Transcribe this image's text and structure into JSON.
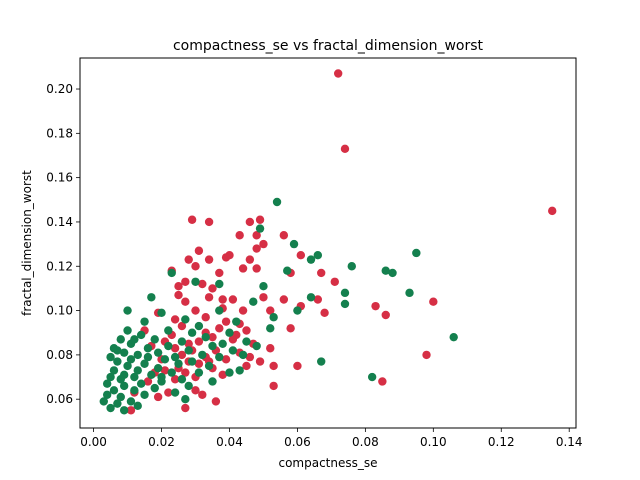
{
  "chart_data": {
    "type": "scatter",
    "title": "compactness_se vs fractal_dimension_worst",
    "xlabel": "compactness_se",
    "ylabel": "fractal_dimension_worst",
    "xlim": [
      -0.004,
      0.142
    ],
    "ylim": [
      0.047,
      0.214
    ],
    "xticks": [
      0.0,
      0.02,
      0.04,
      0.06,
      0.08,
      0.1,
      0.12,
      0.14
    ],
    "xtick_labels": [
      "0.00",
      "0.02",
      "0.04",
      "0.06",
      "0.08",
      "0.10",
      "0.12",
      "0.14"
    ],
    "yticks": [
      0.06,
      0.08,
      0.1,
      0.12,
      0.14,
      0.16,
      0.18,
      0.2
    ],
    "ytick_labels": [
      "0.06",
      "0.08",
      "0.10",
      "0.12",
      "0.14",
      "0.16",
      "0.18",
      "0.20"
    ],
    "grid": false,
    "series": [
      {
        "color": "#d62f45",
        "points": [
          [
            0.072,
            0.207
          ],
          [
            0.074,
            0.173
          ],
          [
            0.135,
            0.145
          ],
          [
            0.029,
            0.141
          ],
          [
            0.034,
            0.14
          ],
          [
            0.046,
            0.14
          ],
          [
            0.049,
            0.141
          ],
          [
            0.048,
            0.134
          ],
          [
            0.056,
            0.134
          ],
          [
            0.043,
            0.134
          ],
          [
            0.05,
            0.13
          ],
          [
            0.048,
            0.128
          ],
          [
            0.031,
            0.127
          ],
          [
            0.04,
            0.125
          ],
          [
            0.061,
            0.125
          ],
          [
            0.039,
            0.124
          ],
          [
            0.028,
            0.123
          ],
          [
            0.046,
            0.123
          ],
          [
            0.034,
            0.123
          ],
          [
            0.03,
            0.12
          ],
          [
            0.044,
            0.119
          ],
          [
            0.048,
            0.119
          ],
          [
            0.023,
            0.118
          ],
          [
            0.037,
            0.117
          ],
          [
            0.058,
            0.117
          ],
          [
            0.067,
            0.117
          ],
          [
            0.071,
            0.113
          ],
          [
            0.032,
            0.112
          ],
          [
            0.025,
            0.111
          ],
          [
            0.035,
            0.11
          ],
          [
            0.05,
            0.106
          ],
          [
            0.041,
            0.105
          ],
          [
            0.038,
            0.105
          ],
          [
            0.027,
            0.104
          ],
          [
            0.056,
            0.105
          ],
          [
            0.066,
            0.105
          ],
          [
            0.1,
            0.104
          ],
          [
            0.083,
            0.102
          ],
          [
            0.061,
            0.102
          ],
          [
            0.038,
            0.101
          ],
          [
            0.044,
            0.1
          ],
          [
            0.03,
            0.1
          ],
          [
            0.052,
            0.1
          ],
          [
            0.086,
            0.098
          ],
          [
            0.068,
            0.099
          ],
          [
            0.033,
            0.097
          ],
          [
            0.024,
            0.096
          ],
          [
            0.043,
            0.094
          ],
          [
            0.026,
            0.093
          ],
          [
            0.037,
            0.092
          ],
          [
            0.058,
            0.092
          ],
          [
            0.045,
            0.091
          ],
          [
            0.033,
            0.09
          ],
          [
            0.023,
            0.089
          ],
          [
            0.035,
            0.088
          ],
          [
            0.041,
            0.087
          ],
          [
            0.031,
            0.086
          ],
          [
            0.028,
            0.085
          ],
          [
            0.047,
            0.085
          ],
          [
            0.052,
            0.083
          ],
          [
            0.024,
            0.083
          ],
          [
            0.036,
            0.082
          ],
          [
            0.043,
            0.081
          ],
          [
            0.098,
            0.08
          ],
          [
            0.026,
            0.08
          ],
          [
            0.033,
            0.079
          ],
          [
            0.02,
            0.078
          ],
          [
            0.039,
            0.078
          ],
          [
            0.049,
            0.077
          ],
          [
            0.028,
            0.077
          ],
          [
            0.031,
            0.076
          ],
          [
            0.045,
            0.075
          ],
          [
            0.06,
            0.075
          ],
          [
            0.053,
            0.075
          ],
          [
            0.035,
            0.074
          ],
          [
            0.021,
            0.073
          ],
          [
            0.027,
            0.072
          ],
          [
            0.018,
            0.072
          ],
          [
            0.038,
            0.071
          ],
          [
            0.03,
            0.07
          ],
          [
            0.024,
            0.069
          ],
          [
            0.085,
            0.068
          ],
          [
            0.016,
            0.068
          ],
          [
            0.053,
            0.066
          ],
          [
            0.03,
            0.064
          ],
          [
            0.022,
            0.063
          ],
          [
            0.012,
            0.063
          ],
          [
            0.032,
            0.062
          ],
          [
            0.019,
            0.061
          ],
          [
            0.036,
            0.059
          ],
          [
            0.027,
            0.056
          ],
          [
            0.011,
            0.055
          ],
          [
            0.025,
            0.074
          ],
          [
            0.034,
            0.077
          ],
          [
            0.029,
            0.082
          ],
          [
            0.042,
            0.089
          ],
          [
            0.021,
            0.086
          ],
          [
            0.046,
            0.079
          ],
          [
            0.039,
            0.095
          ],
          [
            0.034,
            0.106
          ],
          [
            0.027,
            0.113
          ],
          [
            0.025,
            0.107
          ],
          [
            0.019,
            0.099
          ],
          [
            0.015,
            0.091
          ],
          [
            0.017,
            0.084
          ]
        ]
      },
      {
        "color": "#14804e",
        "points": [
          [
            0.054,
            0.149
          ],
          [
            0.049,
            0.137
          ],
          [
            0.059,
            0.13
          ],
          [
            0.066,
            0.125
          ],
          [
            0.095,
            0.126
          ],
          [
            0.023,
            0.117
          ],
          [
            0.064,
            0.123
          ],
          [
            0.076,
            0.12
          ],
          [
            0.057,
            0.118
          ],
          [
            0.086,
            0.118
          ],
          [
            0.088,
            0.117
          ],
          [
            0.03,
            0.113
          ],
          [
            0.037,
            0.112
          ],
          [
            0.05,
            0.111
          ],
          [
            0.074,
            0.108
          ],
          [
            0.093,
            0.108
          ],
          [
            0.017,
            0.106
          ],
          [
            0.064,
            0.106
          ],
          [
            0.047,
            0.104
          ],
          [
            0.074,
            0.103
          ],
          [
            0.06,
            0.1
          ],
          [
            0.01,
            0.1
          ],
          [
            0.037,
            0.1
          ],
          [
            0.02,
            0.099
          ],
          [
            0.053,
            0.097
          ],
          [
            0.027,
            0.096
          ],
          [
            0.042,
            0.095
          ],
          [
            0.015,
            0.095
          ],
          [
            0.031,
            0.093
          ],
          [
            0.052,
            0.092
          ],
          [
            0.01,
            0.091
          ],
          [
            0.022,
            0.091
          ],
          [
            0.04,
            0.09
          ],
          [
            0.014,
            0.089
          ],
          [
            0.033,
            0.088
          ],
          [
            0.106,
            0.088
          ],
          [
            0.008,
            0.087
          ],
          [
            0.018,
            0.087
          ],
          [
            0.026,
            0.086
          ],
          [
            0.045,
            0.086
          ],
          [
            0.011,
            0.085
          ],
          [
            0.022,
            0.084
          ],
          [
            0.035,
            0.084
          ],
          [
            0.048,
            0.084
          ],
          [
            0.006,
            0.083
          ],
          [
            0.016,
            0.083
          ],
          [
            0.028,
            0.082
          ],
          [
            0.041,
            0.082
          ],
          [
            0.009,
            0.081
          ],
          [
            0.019,
            0.081
          ],
          [
            0.032,
            0.08
          ],
          [
            0.013,
            0.08
          ],
          [
            0.024,
            0.079
          ],
          [
            0.005,
            0.079
          ],
          [
            0.037,
            0.079
          ],
          [
            0.011,
            0.078
          ],
          [
            0.021,
            0.078
          ],
          [
            0.029,
            0.077
          ],
          [
            0.067,
            0.077
          ],
          [
            0.007,
            0.077
          ],
          [
            0.015,
            0.076
          ],
          [
            0.025,
            0.076
          ],
          [
            0.034,
            0.075
          ],
          [
            0.01,
            0.075
          ],
          [
            0.019,
            0.074
          ],
          [
            0.043,
            0.073
          ],
          [
            0.006,
            0.073
          ],
          [
            0.013,
            0.073
          ],
          [
            0.023,
            0.072
          ],
          [
            0.031,
            0.072
          ],
          [
            0.04,
            0.072
          ],
          [
            0.009,
            0.071
          ],
          [
            0.017,
            0.071
          ],
          [
            0.005,
            0.07
          ],
          [
            0.082,
            0.07
          ],
          [
            0.012,
            0.07
          ],
          [
            0.026,
            0.069
          ],
          [
            0.008,
            0.069
          ],
          [
            0.02,
            0.068
          ],
          [
            0.035,
            0.068
          ],
          [
            0.004,
            0.067
          ],
          [
            0.014,
            0.067
          ],
          [
            0.028,
            0.066
          ],
          [
            0.009,
            0.066
          ],
          [
            0.018,
            0.065
          ],
          [
            0.006,
            0.064
          ],
          [
            0.012,
            0.064
          ],
          [
            0.024,
            0.063
          ],
          [
            0.004,
            0.062
          ],
          [
            0.015,
            0.062
          ],
          [
            0.008,
            0.061
          ],
          [
            0.027,
            0.06
          ],
          [
            0.003,
            0.059
          ],
          [
            0.011,
            0.059
          ],
          [
            0.007,
            0.058
          ],
          [
            0.013,
            0.057
          ],
          [
            0.005,
            0.056
          ],
          [
            0.009,
            0.055
          ],
          [
            0.02,
            0.07
          ],
          [
            0.016,
            0.079
          ],
          [
            0.038,
            0.085
          ],
          [
            0.044,
            0.08
          ],
          [
            0.029,
            0.09
          ],
          [
            0.012,
            0.087
          ],
          [
            0.007,
            0.082
          ]
        ]
      }
    ]
  }
}
